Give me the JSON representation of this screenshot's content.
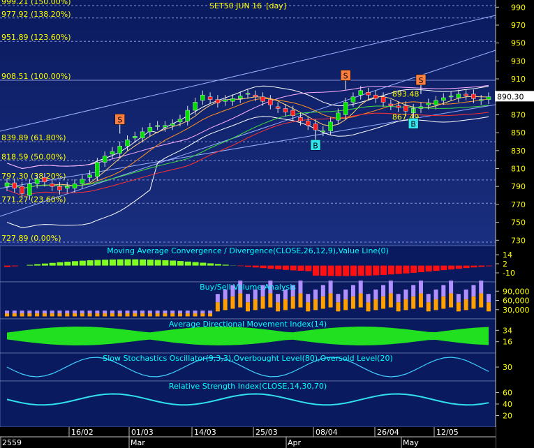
{
  "chart_data": {
    "type": "candlestick",
    "title": "SET50 JUN 16",
    "period": "[day]",
    "last_price": "890.30",
    "price_axis": {
      "ticks": [
        990,
        970,
        950,
        930,
        910,
        890,
        870,
        850,
        830,
        810,
        790,
        770,
        750,
        730
      ],
      "ylim": [
        724,
        998
      ]
    },
    "fibonacci": [
      {
        "label": "999.21 (150.00%)",
        "value": 999.21
      },
      {
        "label": "977.92 (138.20%)",
        "value": 977.92
      },
      {
        "label": "951.89 (123.60%)",
        "value": 951.89
      },
      {
        "label": "908.51 (100.00%)",
        "value": 908.51
      },
      {
        "label": "839.89 (61.80%)",
        "value": 839.89
      },
      {
        "label": "818.59 (50.00%)",
        "value": 818.59
      },
      {
        "label": "797.30 (38.20%)",
        "value": 797.3
      },
      {
        "label": "771.27 (23.60%)",
        "value": 771.27
      },
      {
        "label": "727.89 (0.00%)",
        "value": 727.89
      }
    ],
    "price_annotations": [
      {
        "text": "893.48",
        "value": 893.48,
        "bar": 51
      },
      {
        "text": "867.49",
        "value": 867.49,
        "bar": 51
      }
    ],
    "signals": [
      {
        "text": "S",
        "bar": 15,
        "side": "sell"
      },
      {
        "text": "S",
        "bar": 45,
        "side": "sell"
      },
      {
        "text": "S",
        "bar": 55,
        "side": "sell"
      },
      {
        "text": "B",
        "bar": 41,
        "side": "buy"
      },
      {
        "text": "B",
        "bar": 54,
        "side": "buy"
      }
    ],
    "close": [
      794,
      788,
      782,
      793,
      798,
      795,
      790,
      786,
      790,
      793,
      798,
      803,
      817,
      824,
      829,
      835,
      842,
      846,
      851,
      856,
      858,
      858,
      860,
      865,
      875,
      884,
      892,
      887,
      883,
      887,
      888,
      891,
      894,
      890,
      885,
      881,
      877,
      873,
      869,
      863,
      858,
      853,
      852,
      862,
      872,
      884,
      890,
      897,
      892,
      888,
      884,
      880,
      878,
      874,
      877,
      879,
      883,
      886,
      889,
      891,
      893,
      891,
      888,
      887,
      890
    ],
    "panels": [
      {
        "name": "macd",
        "title": "Moving Average Convergence / Divergence(CLOSE,26,12,9),Value Line(0)",
        "ticks": [
          "14",
          "2",
          "-10"
        ]
      },
      {
        "name": "volume",
        "title": "Buy/Sell Volume Analysis",
        "ticks": [
          "90,000",
          "60,000",
          "30,000"
        ]
      },
      {
        "name": "adx",
        "title": "Average Directional Movement Index(14)",
        "ticks": [
          "34",
          "16"
        ]
      },
      {
        "name": "stoch",
        "title": "Slow Stochastics Oscillator(9,3,3),Overbought Level(80),Oversold Level(20)",
        "ticks": [
          "30"
        ]
      },
      {
        "name": "rsi",
        "title": "Relative Strength Index(CLOSE,14,30,70)",
        "ticks": [
          "60",
          "40",
          "20"
        ]
      }
    ],
    "date_labels": [
      "16/02",
      "01/03",
      "14/03",
      "25/03",
      "08/04",
      "26/04",
      "12/05"
    ],
    "month_labels": [
      "2559",
      "Mar",
      "Apr",
      "May"
    ]
  }
}
